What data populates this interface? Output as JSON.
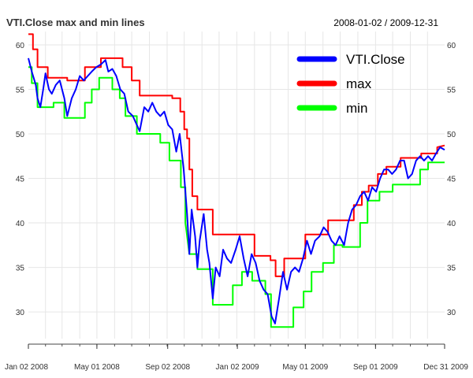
{
  "chart_data": {
    "type": "line",
    "title": "VTI.Close max and min lines",
    "date_range": "2008-01-02 / 2009-12-31",
    "x_ticks": [
      "Jan 02 2008",
      "May 01 2008",
      "Sep 02 2008",
      "Jan 02 2009",
      "May 01 2009",
      "Sep 01 2009",
      "Dec 31 2009"
    ],
    "x_range": [
      "2008-01-02",
      "2009-12-31"
    ],
    "y_ticks": [
      30,
      35,
      40,
      45,
      50,
      55,
      60
    ],
    "ylim": [
      27,
      61.5
    ],
    "grid": true,
    "legend": "top-right",
    "series": [
      {
        "name": "VTI.Close",
        "color": "#0000ff",
        "points": [
          [
            "2008-01-02",
            58.5
          ],
          [
            "2008-01-08",
            57.0
          ],
          [
            "2008-01-15",
            55.5
          ],
          [
            "2008-01-18",
            54.0
          ],
          [
            "2008-01-23",
            53.0
          ],
          [
            "2008-01-28",
            55.0
          ],
          [
            "2008-02-01",
            56.8
          ],
          [
            "2008-02-07",
            55.0
          ],
          [
            "2008-02-12",
            54.5
          ],
          [
            "2008-02-19",
            55.5
          ],
          [
            "2008-02-26",
            56.0
          ],
          [
            "2008-03-05",
            54.0
          ],
          [
            "2008-03-10",
            52.0
          ],
          [
            "2008-03-18",
            54.0
          ],
          [
            "2008-03-25",
            55.0
          ],
          [
            "2008-04-01",
            56.5
          ],
          [
            "2008-04-08",
            56.0
          ],
          [
            "2008-04-15",
            56.5
          ],
          [
            "2008-04-22",
            57.0
          ],
          [
            "2008-04-30",
            57.5
          ],
          [
            "2008-05-08",
            57.8
          ],
          [
            "2008-05-16",
            58.3
          ],
          [
            "2008-05-21",
            57.0
          ],
          [
            "2008-05-28",
            57.3
          ],
          [
            "2008-06-04",
            56.5
          ],
          [
            "2008-06-11",
            55.0
          ],
          [
            "2008-06-18",
            54.5
          ],
          [
            "2008-06-25",
            52.5
          ],
          [
            "2008-07-03",
            52.0
          ],
          [
            "2008-07-10",
            51.0
          ],
          [
            "2008-07-15",
            50.3
          ],
          [
            "2008-07-23",
            53.0
          ],
          [
            "2008-07-30",
            52.5
          ],
          [
            "2008-08-06",
            53.5
          ],
          [
            "2008-08-13",
            52.5
          ],
          [
            "2008-08-20",
            52.0
          ],
          [
            "2008-08-27",
            52.5
          ],
          [
            "2008-09-03",
            51.0
          ],
          [
            "2008-09-10",
            50.5
          ],
          [
            "2008-09-17",
            48.0
          ],
          [
            "2008-09-23",
            50.0
          ],
          [
            "2008-09-30",
            46.0
          ],
          [
            "2008-10-06",
            41.0
          ],
          [
            "2008-10-10",
            36.5
          ],
          [
            "2008-10-14",
            41.5
          ],
          [
            "2008-10-20",
            38.5
          ],
          [
            "2008-10-24",
            35.0
          ],
          [
            "2008-10-28",
            38.0
          ],
          [
            "2008-11-04",
            41.0
          ],
          [
            "2008-11-10",
            37.0
          ],
          [
            "2008-11-14",
            35.5
          ],
          [
            "2008-11-20",
            31.5
          ],
          [
            "2008-11-25",
            35.0
          ],
          [
            "2008-12-02",
            34.0
          ],
          [
            "2008-12-08",
            37.0
          ],
          [
            "2008-12-15",
            36.0
          ],
          [
            "2008-12-22",
            35.5
          ],
          [
            "2008-12-30",
            37.0
          ],
          [
            "2009-01-06",
            38.5
          ],
          [
            "2009-01-13",
            36.0
          ],
          [
            "2009-01-20",
            34.0
          ],
          [
            "2009-01-27",
            36.5
          ],
          [
            "2009-02-03",
            35.5
          ],
          [
            "2009-02-10",
            33.5
          ],
          [
            "2009-02-17",
            32.5
          ],
          [
            "2009-02-24",
            32.0
          ],
          [
            "2009-03-03",
            29.5
          ],
          [
            "2009-03-09",
            28.7
          ],
          [
            "2009-03-16",
            31.5
          ],
          [
            "2009-03-23",
            34.5
          ],
          [
            "2009-03-30",
            32.5
          ],
          [
            "2009-04-06",
            34.5
          ],
          [
            "2009-04-13",
            35.0
          ],
          [
            "2009-04-20",
            34.5
          ],
          [
            "2009-04-27",
            36.0
          ],
          [
            "2009-05-04",
            38.0
          ],
          [
            "2009-05-11",
            36.5
          ],
          [
            "2009-05-18",
            38.0
          ],
          [
            "2009-05-26",
            38.5
          ],
          [
            "2009-06-02",
            39.5
          ],
          [
            "2009-06-09",
            39.0
          ],
          [
            "2009-06-16",
            38.0
          ],
          [
            "2009-06-23",
            37.5
          ],
          [
            "2009-06-30",
            38.5
          ],
          [
            "2009-07-08",
            37.5
          ],
          [
            "2009-07-15",
            40.0
          ],
          [
            "2009-07-22",
            41.5
          ],
          [
            "2009-07-29",
            42.0
          ],
          [
            "2009-08-05",
            43.0
          ],
          [
            "2009-08-12",
            43.5
          ],
          [
            "2009-08-19",
            42.5
          ],
          [
            "2009-08-26",
            44.0
          ],
          [
            "2009-09-02",
            43.5
          ],
          [
            "2009-09-09",
            45.0
          ],
          [
            "2009-09-16",
            46.0
          ],
          [
            "2009-09-23",
            46.0
          ],
          [
            "2009-09-30",
            45.5
          ],
          [
            "2009-10-07",
            46.0
          ],
          [
            "2009-10-14",
            47.0
          ],
          [
            "2009-10-21",
            47.0
          ],
          [
            "2009-10-28",
            45.0
          ],
          [
            "2009-11-04",
            45.5
          ],
          [
            "2009-11-11",
            47.0
          ],
          [
            "2009-11-18",
            47.5
          ],
          [
            "2009-11-25",
            47.0
          ],
          [
            "2009-12-02",
            47.5
          ],
          [
            "2009-12-09",
            47.0
          ],
          [
            "2009-12-16",
            47.8
          ],
          [
            "2009-12-23",
            48.5
          ],
          [
            "2009-12-31",
            48.2
          ]
        ]
      },
      {
        "name": "max",
        "color": "#ff0000",
        "points": [
          [
            "2008-01-02",
            61.2
          ],
          [
            "2008-01-10",
            61.2
          ],
          [
            "2008-01-10",
            59.5
          ],
          [
            "2008-01-18",
            59.5
          ],
          [
            "2008-01-18",
            57.5
          ],
          [
            "2008-02-05",
            57.5
          ],
          [
            "2008-02-05",
            56.3
          ],
          [
            "2008-03-10",
            56.3
          ],
          [
            "2008-03-10",
            56.0
          ],
          [
            "2008-04-10",
            56.0
          ],
          [
            "2008-04-10",
            57.5
          ],
          [
            "2008-05-08",
            57.5
          ],
          [
            "2008-05-08",
            58.5
          ],
          [
            "2008-06-15",
            58.5
          ],
          [
            "2008-06-15",
            57.5
          ],
          [
            "2008-07-01",
            57.5
          ],
          [
            "2008-07-01",
            56.0
          ],
          [
            "2008-07-15",
            56.0
          ],
          [
            "2008-07-15",
            54.3
          ],
          [
            "2008-09-10",
            54.3
          ],
          [
            "2008-09-10",
            54.0
          ],
          [
            "2008-09-24",
            54.0
          ],
          [
            "2008-09-24",
            52.5
          ],
          [
            "2008-10-01",
            52.5
          ],
          [
            "2008-10-01",
            50.5
          ],
          [
            "2008-10-06",
            50.5
          ],
          [
            "2008-10-06",
            49.5
          ],
          [
            "2008-10-10",
            49.5
          ],
          [
            "2008-10-10",
            46.0
          ],
          [
            "2008-10-15",
            46.0
          ],
          [
            "2008-10-15",
            43.0
          ],
          [
            "2008-10-24",
            43.0
          ],
          [
            "2008-10-24",
            41.5
          ],
          [
            "2008-11-20",
            41.5
          ],
          [
            "2008-11-20",
            38.7
          ],
          [
            "2009-02-01",
            38.7
          ],
          [
            "2009-02-01",
            36.3
          ],
          [
            "2009-03-01",
            36.3
          ],
          [
            "2009-03-01",
            35.8
          ],
          [
            "2009-03-10",
            35.8
          ],
          [
            "2009-03-10",
            34.0
          ],
          [
            "2009-03-25",
            34.0
          ],
          [
            "2009-03-25",
            36.0
          ],
          [
            "2009-05-01",
            36.0
          ],
          [
            "2009-05-01",
            38.7
          ],
          [
            "2009-06-10",
            38.7
          ],
          [
            "2009-06-10",
            40.3
          ],
          [
            "2009-07-25",
            40.3
          ],
          [
            "2009-07-25",
            42.0
          ],
          [
            "2009-08-08",
            42.0
          ],
          [
            "2009-08-08",
            43.5
          ],
          [
            "2009-08-20",
            43.5
          ],
          [
            "2009-08-20",
            44.2
          ],
          [
            "2009-09-05",
            44.2
          ],
          [
            "2009-09-05",
            45.5
          ],
          [
            "2009-09-20",
            45.5
          ],
          [
            "2009-09-20",
            46.3
          ],
          [
            "2009-10-15",
            46.3
          ],
          [
            "2009-10-15",
            47.3
          ],
          [
            "2009-11-20",
            47.3
          ],
          [
            "2009-11-20",
            47.8
          ],
          [
            "2009-12-18",
            47.8
          ],
          [
            "2009-12-18",
            48.5
          ],
          [
            "2009-12-31",
            48.7
          ]
        ]
      },
      {
        "name": "min",
        "color": "#00ff00",
        "points": [
          [
            "2008-01-02",
            57.5
          ],
          [
            "2008-01-08",
            57.5
          ],
          [
            "2008-01-08",
            55.7
          ],
          [
            "2008-01-18",
            55.7
          ],
          [
            "2008-01-18",
            53.0
          ],
          [
            "2008-02-15",
            53.0
          ],
          [
            "2008-02-15",
            53.5
          ],
          [
            "2008-03-05",
            53.5
          ],
          [
            "2008-03-05",
            51.8
          ],
          [
            "2008-04-10",
            51.8
          ],
          [
            "2008-04-10",
            53.5
          ],
          [
            "2008-04-22",
            53.5
          ],
          [
            "2008-04-22",
            55.0
          ],
          [
            "2008-05-05",
            55.0
          ],
          [
            "2008-05-05",
            56.3
          ],
          [
            "2008-05-28",
            56.3
          ],
          [
            "2008-05-28",
            55.0
          ],
          [
            "2008-06-10",
            55.0
          ],
          [
            "2008-06-10",
            54.0
          ],
          [
            "2008-06-20",
            54.0
          ],
          [
            "2008-06-20",
            52.0
          ],
          [
            "2008-07-10",
            52.0
          ],
          [
            "2008-07-10",
            50.0
          ],
          [
            "2008-08-20",
            50.0
          ],
          [
            "2008-08-20",
            49.0
          ],
          [
            "2008-09-05",
            49.0
          ],
          [
            "2008-09-05",
            47.0
          ],
          [
            "2008-09-25",
            47.0
          ],
          [
            "2008-09-25",
            44.0
          ],
          [
            "2008-10-03",
            44.0
          ],
          [
            "2008-10-03",
            40.0
          ],
          [
            "2008-10-10",
            36.5
          ],
          [
            "2008-10-24",
            36.5
          ],
          [
            "2008-10-24",
            34.8
          ],
          [
            "2008-11-20",
            34.8
          ],
          [
            "2008-11-20",
            30.8
          ],
          [
            "2008-12-25",
            30.8
          ],
          [
            "2008-12-25",
            33.0
          ],
          [
            "2009-01-10",
            33.0
          ],
          [
            "2009-01-10",
            34.5
          ],
          [
            "2009-01-28",
            34.5
          ],
          [
            "2009-01-28",
            33.5
          ],
          [
            "2009-02-20",
            33.5
          ],
          [
            "2009-02-20",
            32.0
          ],
          [
            "2009-03-02",
            32.0
          ],
          [
            "2009-03-02",
            28.3
          ],
          [
            "2009-04-10",
            28.3
          ],
          [
            "2009-04-10",
            30.5
          ],
          [
            "2009-04-28",
            30.5
          ],
          [
            "2009-04-28",
            32.3
          ],
          [
            "2009-05-12",
            32.3
          ],
          [
            "2009-05-12",
            34.5
          ],
          [
            "2009-06-01",
            34.5
          ],
          [
            "2009-06-01",
            35.5
          ],
          [
            "2009-06-20",
            35.5
          ],
          [
            "2009-06-20",
            37.5
          ],
          [
            "2009-07-05",
            37.5
          ],
          [
            "2009-07-05",
            37.3
          ],
          [
            "2009-08-05",
            37.3
          ],
          [
            "2009-08-05",
            40.0
          ],
          [
            "2009-08-18",
            40.0
          ],
          [
            "2009-08-18",
            42.5
          ],
          [
            "2009-09-08",
            42.5
          ],
          [
            "2009-09-08",
            43.5
          ],
          [
            "2009-10-01",
            43.5
          ],
          [
            "2009-10-01",
            44.3
          ],
          [
            "2009-11-18",
            44.3
          ],
          [
            "2009-11-18",
            46.0
          ],
          [
            "2009-12-02",
            46.0
          ],
          [
            "2009-12-02",
            46.8
          ],
          [
            "2009-12-31",
            46.8
          ]
        ]
      }
    ]
  }
}
